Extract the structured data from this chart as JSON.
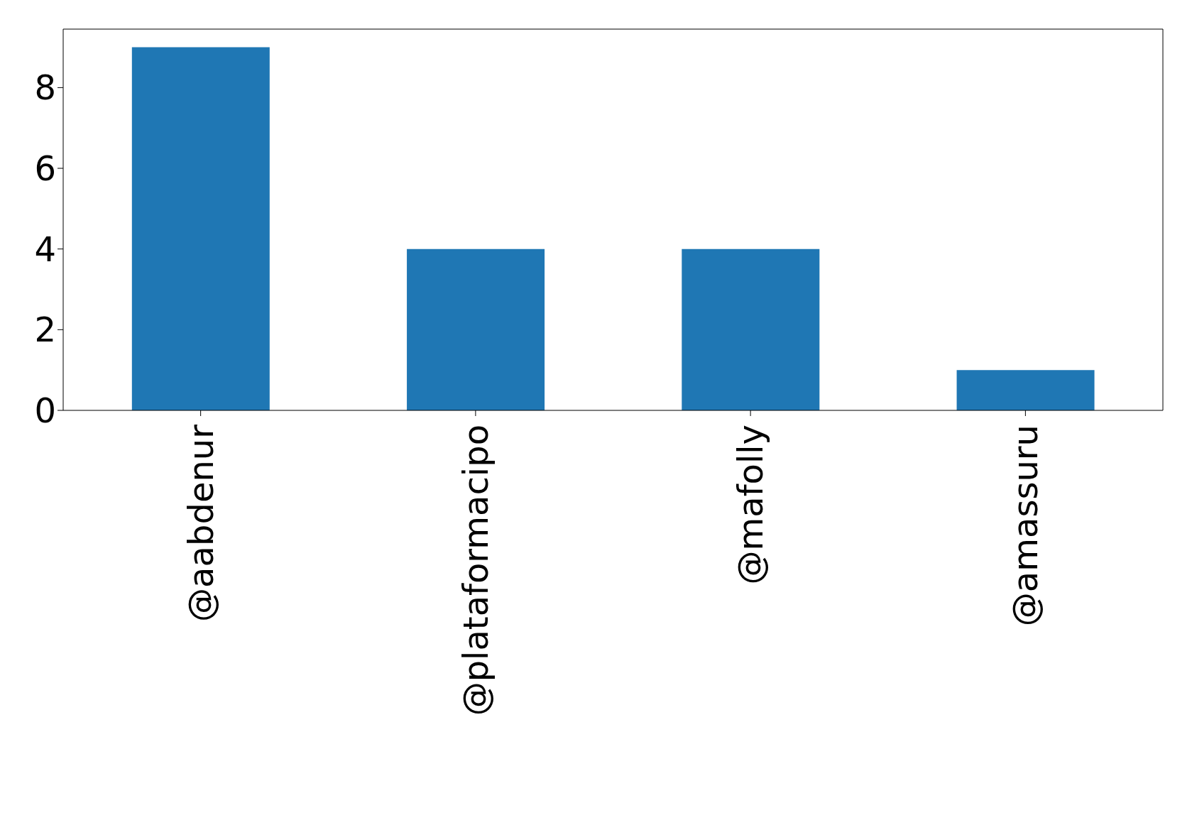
{
  "chart_data": {
    "type": "bar",
    "categories": [
      "@aabdenur",
      "@plataformacipo",
      "@mafolly",
      "@amassuru"
    ],
    "values": [
      9,
      4,
      4,
      1
    ],
    "color": "#1f77b4",
    "ylim": [
      0,
      9.45
    ],
    "yticks": [
      0,
      2,
      4,
      6,
      8
    ]
  }
}
